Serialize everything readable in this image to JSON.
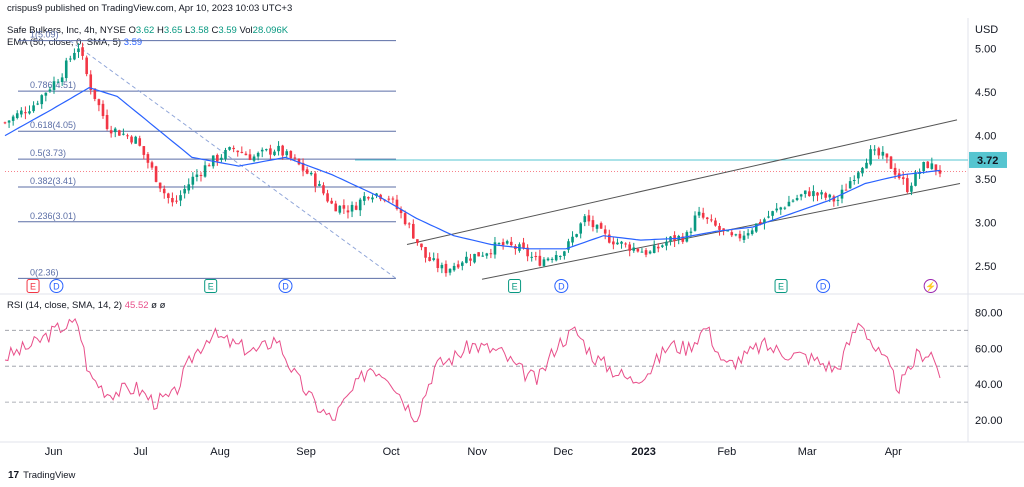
{
  "header": {
    "publisher": "crispus9 published on TradingView.com, Apr 10, 2023 10:03 UTC+3",
    "symbol_line": "Safe Bulkers, Inc, 4h, NYSE",
    "o_label": "O",
    "o_value": "3.62",
    "h_label": "H",
    "h_value": "3.65",
    "l_label": "L",
    "l_value": "3.58",
    "c_label": "C",
    "c_value": "3.59",
    "vol_label": "Vol",
    "vol_value": "28.096K",
    "ema_label": "EMA (50, close, 0, SMA, 5)",
    "ema_value": "3.59",
    "rsi_label": "RSI (14, close, SMA, 14, 2)",
    "rsi_value": "45.52",
    "rsi_ema": "ø",
    "rsi_ema2": "ø"
  },
  "footer": {
    "brand": "TradingView"
  },
  "colors": {
    "up": "#089981",
    "down": "#f23645",
    "ema": "#2962ff",
    "rsi": "#e84f8a",
    "fib": "#5b6ea6",
    "channel": "#555555",
    "last_price": "#56c5d0"
  },
  "chart_data": [
    {
      "type": "candlestick",
      "title": "Safe Bulkers, Inc, 4h, NYSE",
      "currency_label": "USD",
      "price_ticks": [
        "5.00",
        "4.50",
        "4.00",
        "3.50",
        "3.00",
        "2.50"
      ],
      "price_tick_values": [
        5.0,
        4.5,
        4.0,
        3.5,
        3.0,
        2.5
      ],
      "ylim": [
        2.25,
        5.35
      ],
      "x_labels": [
        "Jun",
        "Jul",
        "Aug",
        "Sep",
        "Oct",
        "Nov",
        "Dec",
        "2023",
        "Feb",
        "Mar",
        "Apr"
      ],
      "last_price_label": "3.72",
      "last_price": 3.72,
      "current_price": 3.59,
      "fib_levels": [
        {
          "label": "1(5.09)",
          "value": 5.09
        },
        {
          "label": "0.786(4.51)",
          "value": 4.51
        },
        {
          "label": "0.618(4.05)",
          "value": 4.05
        },
        {
          "label": "0.5(3.73)",
          "value": 3.73
        },
        {
          "label": "0.382(3.41)",
          "value": 3.41
        },
        {
          "label": "0.236(3.01)",
          "value": 3.01
        },
        {
          "label": "0(2.36)",
          "value": 2.36
        }
      ],
      "price_path": [
        [
          0.0,
          4.15
        ],
        [
          0.03,
          4.35
        ],
        [
          0.06,
          4.7
        ],
        [
          0.078,
          5.05
        ],
        [
          0.09,
          4.6
        ],
        [
          0.11,
          4.1
        ],
        [
          0.14,
          3.95
        ],
        [
          0.155,
          3.65
        ],
        [
          0.17,
          3.35
        ],
        [
          0.18,
          3.2
        ],
        [
          0.2,
          3.5
        ],
        [
          0.22,
          3.7
        ],
        [
          0.245,
          3.85
        ],
        [
          0.265,
          3.75
        ],
        [
          0.29,
          3.85
        ],
        [
          0.31,
          3.7
        ],
        [
          0.33,
          3.5
        ],
        [
          0.35,
          3.2
        ],
        [
          0.37,
          3.15
        ],
        [
          0.39,
          3.35
        ],
        [
          0.41,
          3.3
        ],
        [
          0.43,
          3.0
        ],
        [
          0.45,
          2.6
        ],
        [
          0.47,
          2.45
        ],
        [
          0.49,
          2.58
        ],
        [
          0.51,
          2.65
        ],
        [
          0.53,
          2.75
        ],
        [
          0.55,
          2.7
        ],
        [
          0.57,
          2.55
        ],
        [
          0.6,
          2.7
        ],
        [
          0.62,
          3.05
        ],
        [
          0.64,
          2.85
        ],
        [
          0.66,
          2.75
        ],
        [
          0.69,
          2.65
        ],
        [
          0.71,
          2.8
        ],
        [
          0.73,
          2.85
        ],
        [
          0.74,
          3.1
        ],
        [
          0.76,
          2.95
        ],
        [
          0.78,
          2.8
        ],
        [
          0.8,
          2.95
        ],
        [
          0.82,
          3.1
        ],
        [
          0.84,
          3.25
        ],
        [
          0.86,
          3.35
        ],
        [
          0.875,
          3.3
        ],
        [
          0.89,
          3.25
        ],
        [
          0.905,
          3.5
        ],
        [
          0.925,
          3.8
        ],
        [
          0.94,
          3.75
        ],
        [
          0.955,
          3.55
        ],
        [
          0.965,
          3.4
        ],
        [
          0.975,
          3.55
        ],
        [
          0.985,
          3.68
        ],
        [
          1.0,
          3.59
        ]
      ],
      "ema_path": [
        [
          0.0,
          4.0
        ],
        [
          0.05,
          4.3
        ],
        [
          0.09,
          4.55
        ],
        [
          0.12,
          4.45
        ],
        [
          0.16,
          4.1
        ],
        [
          0.2,
          3.75
        ],
        [
          0.25,
          3.65
        ],
        [
          0.3,
          3.75
        ],
        [
          0.35,
          3.55
        ],
        [
          0.4,
          3.3
        ],
        [
          0.44,
          3.05
        ],
        [
          0.48,
          2.85
        ],
        [
          0.52,
          2.75
        ],
        [
          0.56,
          2.7
        ],
        [
          0.6,
          2.7
        ],
        [
          0.64,
          2.85
        ],
        [
          0.68,
          2.8
        ],
        [
          0.72,
          2.82
        ],
        [
          0.76,
          2.9
        ],
        [
          0.8,
          2.95
        ],
        [
          0.84,
          3.1
        ],
        [
          0.88,
          3.25
        ],
        [
          0.92,
          3.45
        ],
        [
          0.96,
          3.55
        ],
        [
          1.0,
          3.6
        ]
      ],
      "event_markers": [
        {
          "x": 0.03,
          "text": "E",
          "color": "#f23645"
        },
        {
          "x": 0.055,
          "text": "D",
          "color": "#2962ff"
        },
        {
          "x": 0.22,
          "text": "E",
          "color": "#089981"
        },
        {
          "x": 0.3,
          "text": "D",
          "color": "#2962ff"
        },
        {
          "x": 0.545,
          "text": "E",
          "color": "#089981"
        },
        {
          "x": 0.595,
          "text": "D",
          "color": "#2962ff"
        },
        {
          "x": 0.83,
          "text": "E",
          "color": "#089981"
        },
        {
          "x": 0.875,
          "text": "D",
          "color": "#2962ff"
        },
        {
          "x": 0.99,
          "text": "⚡",
          "color": "#9c27b0"
        }
      ]
    },
    {
      "type": "line",
      "title": "RSI (14, close, SMA, 14, 2)",
      "ticks": [
        "80.00",
        "60.00",
        "40.00",
        "20.00"
      ],
      "tick_values": [
        80,
        60,
        40,
        20
      ],
      "ylim": [
        10,
        88
      ],
      "bands": [
        70,
        50,
        30
      ],
      "rsi_path": [
        [
          0.0,
          55
        ],
        [
          0.03,
          62
        ],
        [
          0.06,
          72
        ],
        [
          0.078,
          74
        ],
        [
          0.09,
          45
        ],
        [
          0.11,
          35
        ],
        [
          0.14,
          38
        ],
        [
          0.16,
          30
        ],
        [
          0.18,
          33
        ],
        [
          0.2,
          55
        ],
        [
          0.22,
          68
        ],
        [
          0.245,
          62
        ],
        [
          0.27,
          58
        ],
        [
          0.29,
          66
        ],
        [
          0.31,
          45
        ],
        [
          0.33,
          30
        ],
        [
          0.35,
          20
        ],
        [
          0.37,
          35
        ],
        [
          0.39,
          50
        ],
        [
          0.41,
          45
        ],
        [
          0.43,
          28
        ],
        [
          0.44,
          22
        ],
        [
          0.46,
          50
        ],
        [
          0.48,
          55
        ],
        [
          0.5,
          62
        ],
        [
          0.53,
          58
        ],
        [
          0.55,
          48
        ],
        [
          0.57,
          42
        ],
        [
          0.59,
          62
        ],
        [
          0.61,
          70
        ],
        [
          0.63,
          55
        ],
        [
          0.65,
          48
        ],
        [
          0.67,
          42
        ],
        [
          0.69,
          48
        ],
        [
          0.71,
          62
        ],
        [
          0.73,
          60
        ],
        [
          0.75,
          72
        ],
        [
          0.77,
          50
        ],
        [
          0.79,
          55
        ],
        [
          0.81,
          62
        ],
        [
          0.83,
          58
        ],
        [
          0.86,
          55
        ],
        [
          0.89,
          48
        ],
        [
          0.9,
          60
        ],
        [
          0.915,
          76
        ],
        [
          0.93,
          60
        ],
        [
          0.945,
          50
        ],
        [
          0.955,
          38
        ],
        [
          0.965,
          45
        ],
        [
          0.975,
          56
        ],
        [
          0.99,
          58
        ],
        [
          1.0,
          46
        ]
      ]
    }
  ]
}
